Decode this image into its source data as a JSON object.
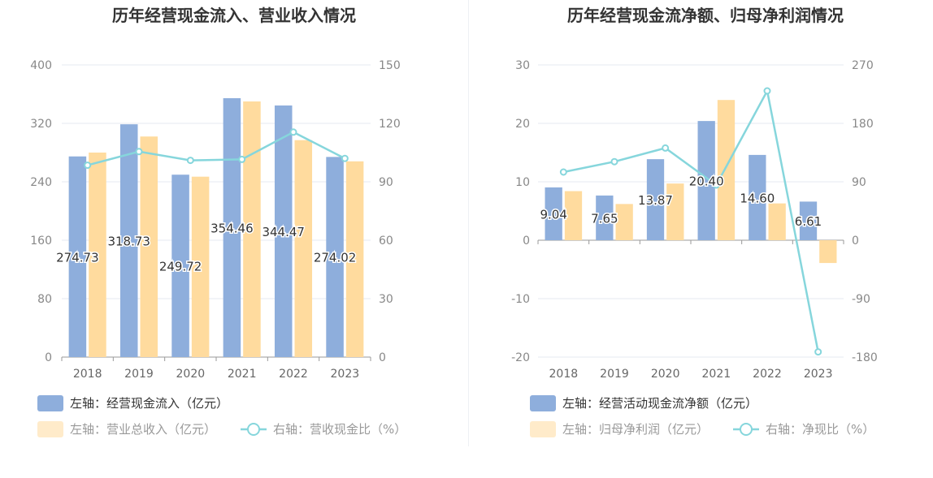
{
  "colors": {
    "bar1": "#8eaedc",
    "bar2": "#ffdb9e",
    "line": "#86d6dc",
    "grid": "#e6e9f2",
    "axis": "#999999"
  },
  "chart_data": [
    {
      "type": "bar",
      "title": "历年经营现金流入、营业收入情况",
      "categories": [
        "2018",
        "2019",
        "2020",
        "2021",
        "2022",
        "2023"
      ],
      "left_axis": {
        "ticks": [
          "0",
          "80",
          "160",
          "240",
          "320",
          "400"
        ],
        "ylim": [
          0,
          400
        ]
      },
      "right_axis": {
        "ticks": [
          "0",
          "30",
          "60",
          "90",
          "120",
          "150"
        ],
        "ylim": [
          0,
          150
        ]
      },
      "series": [
        {
          "name": "经营现金流入",
          "axis": "left",
          "kind": "bar",
          "color_key": "bar1",
          "values": [
            274.73,
            318.73,
            249.72,
            354.46,
            344.47,
            274.02
          ],
          "labels": [
            "274.73",
            "318.73",
            "249.72",
            "354.46",
            "344.47",
            "274.02"
          ]
        },
        {
          "name": "营业总收入",
          "axis": "left",
          "kind": "bar",
          "color_key": "bar2",
          "values": [
            280,
            302,
            247,
            350,
            297,
            268
          ]
        },
        {
          "name": "营收现金比",
          "axis": "right",
          "kind": "line",
          "color_key": "line",
          "values": [
            98.5,
            105.5,
            101,
            101.5,
            115.5,
            102
          ]
        }
      ],
      "legend": [
        {
          "label": "左轴：经营现金流入（亿元）",
          "kind": "bar",
          "color_key": "bar1",
          "muted": false
        },
        {
          "label": "左轴：营业总收入（亿元）",
          "kind": "bar",
          "color_key": "bar2",
          "muted": true
        },
        {
          "label": "右轴：营收现金比（%）",
          "kind": "line",
          "color_key": "line",
          "muted": true
        }
      ]
    },
    {
      "type": "bar",
      "title": "历年经营现金流净额、归母净利润情况",
      "categories": [
        "2018",
        "2019",
        "2020",
        "2021",
        "2022",
        "2023"
      ],
      "left_axis": {
        "ticks": [
          "-20",
          "-10",
          "0",
          "10",
          "20",
          "30"
        ],
        "ylim": [
          -20,
          30
        ]
      },
      "right_axis": {
        "ticks": [
          "-180",
          "-90",
          "0",
          "90",
          "180",
          "270"
        ],
        "ylim": [
          -180,
          270
        ]
      },
      "series": [
        {
          "name": "经营活动现金流净额",
          "axis": "left",
          "kind": "bar",
          "color_key": "bar1",
          "values": [
            9.04,
            7.65,
            13.87,
            20.4,
            14.6,
            6.61
          ],
          "labels": [
            "9.04",
            "7.65",
            "13.87",
            "20.40",
            "14.60",
            "6.61"
          ]
        },
        {
          "name": "归母净利润",
          "axis": "left",
          "kind": "bar",
          "color_key": "bar2",
          "values": [
            8.4,
            6.2,
            9.7,
            24.0,
            6.3,
            -3.9
          ]
        },
        {
          "name": "净现比",
          "axis": "right",
          "kind": "line",
          "color_key": "line",
          "values": [
            105,
            121,
            142,
            85,
            230,
            -172
          ]
        }
      ],
      "legend": [
        {
          "label": "左轴：经营活动现金流净额（亿元）",
          "kind": "bar",
          "color_key": "bar1",
          "muted": false
        },
        {
          "label": "左轴：归母净利润（亿元）",
          "kind": "bar",
          "color_key": "bar2",
          "muted": true
        },
        {
          "label": "右轴：净现比（%）",
          "kind": "line",
          "color_key": "line",
          "muted": true
        }
      ]
    }
  ]
}
